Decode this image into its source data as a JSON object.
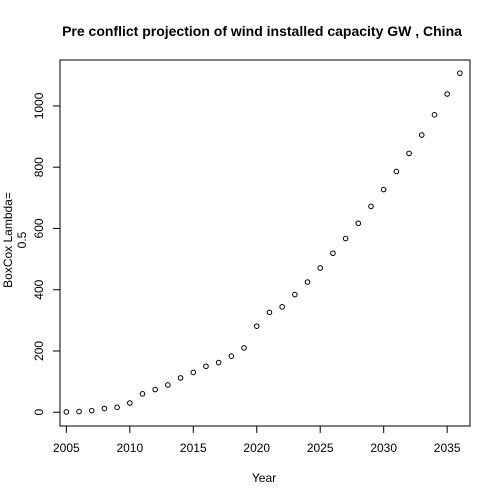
{
  "chart_data": {
    "type": "scatter",
    "title": "Pre conflict projection of wind installed capacity GW , China",
    "xlabel": "Year",
    "ylabel_line1": "BoxCox Lambda=",
    "ylabel_line2": "0.5",
    "xlim": [
      2004.5,
      2036.8
    ],
    "ylim": [
      -45,
      1150
    ],
    "x_ticks": [
      2005,
      2010,
      2015,
      2020,
      2025,
      2030,
      2035
    ],
    "y_ticks": [
      0,
      200,
      400,
      600,
      800,
      1000
    ],
    "marker": "open-circle",
    "points": [
      {
        "x": 2005,
        "y": 1
      },
      {
        "x": 2006,
        "y": 2
      },
      {
        "x": 2007,
        "y": 5
      },
      {
        "x": 2008,
        "y": 12
      },
      {
        "x": 2009,
        "y": 16
      },
      {
        "x": 2010,
        "y": 30
      },
      {
        "x": 2011,
        "y": 60
      },
      {
        "x": 2012,
        "y": 74
      },
      {
        "x": 2013,
        "y": 89
      },
      {
        "x": 2014,
        "y": 112
      },
      {
        "x": 2015,
        "y": 130
      },
      {
        "x": 2016,
        "y": 150
      },
      {
        "x": 2017,
        "y": 162
      },
      {
        "x": 2018,
        "y": 183
      },
      {
        "x": 2019,
        "y": 210
      },
      {
        "x": 2020,
        "y": 281
      },
      {
        "x": 2021,
        "y": 326
      },
      {
        "x": 2022,
        "y": 344
      },
      {
        "x": 2023,
        "y": 384
      },
      {
        "x": 2024,
        "y": 425
      },
      {
        "x": 2025,
        "y": 471
      },
      {
        "x": 2026,
        "y": 519
      },
      {
        "x": 2027,
        "y": 567
      },
      {
        "x": 2028,
        "y": 617
      },
      {
        "x": 2029,
        "y": 672
      },
      {
        "x": 2030,
        "y": 727
      },
      {
        "x": 2031,
        "y": 786
      },
      {
        "x": 2032,
        "y": 845
      },
      {
        "x": 2033,
        "y": 905
      },
      {
        "x": 2034,
        "y": 971
      },
      {
        "x": 2035,
        "y": 1039
      },
      {
        "x": 2036,
        "y": 1107
      }
    ]
  }
}
